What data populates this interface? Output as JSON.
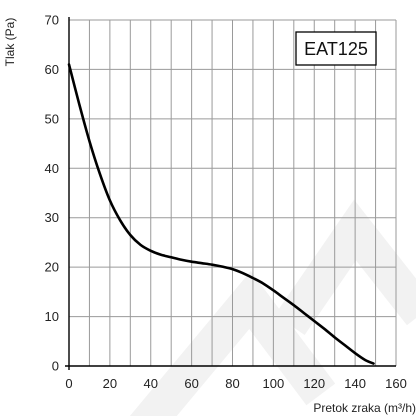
{
  "chart_data": {
    "type": "line",
    "title": "",
    "xlabel": "Pretok zraka (m³/h)",
    "ylabel": "Tlak (Pa)",
    "xlim": [
      0,
      160
    ],
    "ylim": [
      0,
      70
    ],
    "xticks": [
      "0",
      "20",
      "40",
      "60",
      "80",
      "100",
      "120",
      "140",
      "160"
    ],
    "yticks": [
      "0",
      "10",
      "20",
      "30",
      "40",
      "50",
      "60",
      "70"
    ],
    "grid": true,
    "annotation": "EAT125",
    "series": [
      {
        "color": "#000000",
        "x": [
          0,
          5,
          10,
          15,
          20,
          25,
          30,
          35,
          40,
          45,
          50,
          55,
          60,
          65,
          70,
          75,
          80,
          85,
          90,
          95,
          100,
          105,
          110,
          115,
          120,
          125,
          130,
          135,
          140,
          145,
          149
        ],
        "y": [
          61.0,
          53.0,
          45.5,
          39.0,
          33.5,
          29.5,
          26.5,
          24.5,
          23.3,
          22.5,
          22.0,
          21.5,
          21.1,
          20.8,
          20.5,
          20.1,
          19.6,
          18.8,
          17.8,
          16.7,
          15.3,
          13.8,
          12.3,
          10.7,
          9.1,
          7.5,
          5.8,
          4.2,
          2.6,
          1.2,
          0.5
        ]
      }
    ]
  }
}
